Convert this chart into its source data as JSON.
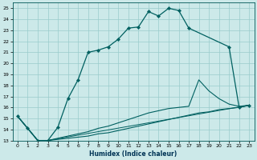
{
  "xlabel": "Humidex (Indice chaleur)",
  "xlim": [
    -0.5,
    23.5
  ],
  "ylim": [
    13,
    25.5
  ],
  "xticks": [
    0,
    1,
    2,
    3,
    4,
    5,
    6,
    7,
    8,
    9,
    10,
    11,
    12,
    13,
    14,
    15,
    16,
    17,
    18,
    19,
    20,
    21,
    22,
    23
  ],
  "yticks": [
    13,
    14,
    15,
    16,
    17,
    18,
    19,
    20,
    21,
    22,
    23,
    24,
    25
  ],
  "bg_color": "#cce9e9",
  "line_color": "#006060",
  "grid_color": "#99cccc",
  "curve_main": {
    "x": [
      0,
      1,
      2,
      3,
      4,
      5,
      6,
      7,
      8,
      9,
      10,
      11,
      12,
      13,
      14,
      15,
      16,
      17,
      21,
      22,
      23
    ],
    "y": [
      15.2,
      14.1,
      13.0,
      13.0,
      14.2,
      16.8,
      18.5,
      21.0,
      21.2,
      21.5,
      22.2,
      23.2,
      23.3,
      24.7,
      24.3,
      25.0,
      24.8,
      23.2,
      21.5,
      16.0,
      16.2
    ]
  },
  "curve2": {
    "x": [
      0,
      2,
      3,
      4,
      5,
      6,
      7,
      8,
      9,
      10,
      11,
      12,
      13,
      14,
      15,
      16,
      17,
      18,
      19,
      20,
      21,
      22,
      23
    ],
    "y": [
      15.2,
      13.0,
      13.0,
      13.2,
      13.4,
      13.6,
      13.8,
      14.1,
      14.3,
      14.6,
      14.9,
      15.2,
      15.5,
      15.7,
      15.9,
      16.0,
      16.1,
      18.5,
      17.5,
      16.8,
      16.3,
      16.1,
      16.2
    ]
  },
  "curve3": {
    "x": [
      0,
      2,
      3,
      4,
      5,
      6,
      7,
      8,
      9,
      10,
      11,
      12,
      13,
      14,
      15,
      16,
      17,
      18,
      19,
      20,
      21,
      22,
      23
    ],
    "y": [
      15.2,
      13.0,
      13.0,
      13.1,
      13.2,
      13.3,
      13.4,
      13.6,
      13.7,
      13.9,
      14.1,
      14.3,
      14.5,
      14.7,
      14.9,
      15.1,
      15.3,
      15.5,
      15.6,
      15.8,
      15.9,
      16.0,
      16.2
    ]
  },
  "curve4": {
    "x": [
      0,
      2,
      3,
      23
    ],
    "y": [
      15.2,
      13.0,
      13.0,
      16.2
    ]
  }
}
